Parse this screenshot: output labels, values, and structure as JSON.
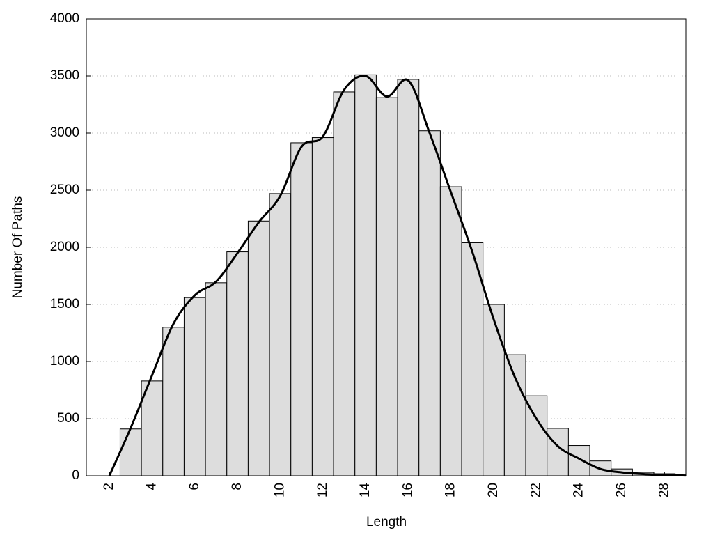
{
  "chart_data": {
    "type": "histogram",
    "x_label": "Length",
    "y_label": "Number Of Paths",
    "bins": [
      2.5,
      3.5,
      4.5,
      5.5,
      6.5,
      7.5,
      8.5,
      9.5,
      10.5,
      11.5,
      12.5,
      13.5,
      14.5,
      15.5,
      16.5,
      17.5,
      18.5,
      19.5,
      20.5,
      21.5,
      22.5,
      23.5,
      24.5,
      25.5,
      26.5,
      27.5,
      28.5
    ],
    "values": [
      410,
      830,
      1300,
      1560,
      1690,
      1960,
      2230,
      2470,
      2915,
      2960,
      3360,
      3510,
      3310,
      3470,
      3020,
      2530,
      2040,
      1500,
      1060,
      700,
      415,
      265,
      130,
      60,
      30,
      18
    ],
    "color": "#dddddd",
    "line": {
      "x": [
        2,
        3,
        4,
        5,
        6,
        7,
        8,
        9,
        10,
        11,
        12,
        13,
        14,
        15,
        16,
        17,
        18,
        19,
        20,
        21,
        22,
        23,
        24,
        25,
        26,
        27,
        28,
        29
      ],
      "values": [
        0,
        420,
        880,
        1330,
        1580,
        1700,
        1950,
        2220,
        2450,
        2880,
        2970,
        3380,
        3500,
        3320,
        3460,
        3000,
        2480,
        1960,
        1370,
        860,
        500,
        260,
        150,
        60,
        30,
        15,
        8,
        2
      ],
      "color": "#000000"
    },
    "xlim": [
      0.92,
      29
    ],
    "ylim": [
      0,
      4000
    ],
    "xticks": [
      2,
      4,
      6,
      8,
      10,
      12,
      14,
      16,
      18,
      20,
      22,
      24,
      26,
      28
    ],
    "yticks": [
      0,
      500,
      1000,
      1500,
      2000,
      2500,
      3000,
      3500,
      4000
    ],
    "grid": true
  }
}
